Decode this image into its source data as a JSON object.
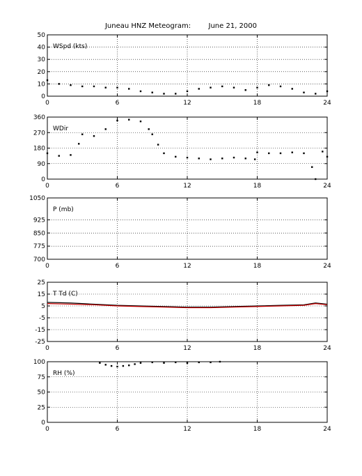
{
  "page": {
    "title": "Juneau HNZ Meteogram:        June 21, 2000"
  },
  "chart_data": [
    {
      "type": "scatter",
      "label": "WSpd (kts)",
      "ylim": [
        0,
        50
      ],
      "yticks": [
        0,
        10,
        20,
        30,
        40,
        50
      ],
      "xlim": [
        0,
        24
      ],
      "xticks": [
        0,
        6,
        12,
        18,
        24
      ],
      "grid": "dotted",
      "series": [
        {
          "color": "#000000",
          "x": [
            0,
            1,
            2,
            3,
            4,
            5,
            6,
            7,
            8,
            9,
            10,
            11,
            12,
            13,
            14,
            15,
            16,
            17,
            18,
            19,
            20,
            21,
            22,
            23,
            24
          ],
          "y": [
            13,
            10,
            9,
            8,
            8,
            7,
            7,
            6,
            4,
            3,
            2,
            2,
            4,
            6,
            7,
            8,
            7,
            5,
            7,
            9,
            8,
            6,
            3,
            2,
            4
          ]
        }
      ]
    },
    {
      "type": "scatter",
      "label": "WDir",
      "ylim": [
        0,
        360
      ],
      "yticks": [
        0,
        90,
        180,
        270,
        360
      ],
      "xlim": [
        0,
        24
      ],
      "xticks": [
        0,
        6,
        12,
        18,
        24
      ],
      "grid": "dotted",
      "series": [
        {
          "color": "#000000",
          "x": [
            0,
            1,
            2,
            2.7,
            3,
            4,
            5,
            6,
            7,
            8,
            8.7,
            9,
            9.5,
            10,
            11,
            12,
            13,
            14,
            15,
            16,
            17,
            17.8,
            18,
            19,
            20,
            21,
            22,
            22.7,
            23,
            23.6,
            24
          ],
          "y": [
            150,
            135,
            140,
            205,
            260,
            250,
            290,
            340,
            345,
            335,
            290,
            260,
            200,
            150,
            130,
            125,
            120,
            115,
            120,
            125,
            120,
            115,
            155,
            150,
            150,
            155,
            150,
            70,
            0,
            160,
            130
          ]
        }
      ]
    },
    {
      "type": "scatter",
      "label": "P (mb)",
      "ylim": [
        700,
        1050
      ],
      "yticks": [
        700,
        775,
        850,
        925,
        1050
      ],
      "xlim": [
        0,
        24
      ],
      "xticks": [
        0,
        6,
        12,
        18,
        24
      ],
      "grid": "dotted",
      "series": []
    },
    {
      "type": "line",
      "label": "T Td (C)",
      "ylim": [
        -25,
        25
      ],
      "yticks": [
        -25,
        -15,
        -5,
        5,
        15,
        25
      ],
      "xlim": [
        0,
        24
      ],
      "xticks": [
        0,
        6,
        12,
        18,
        24
      ],
      "grid": "dotted",
      "series": [
        {
          "name": "T",
          "color": "#000000",
          "x": [
            0,
            2,
            4,
            6,
            8,
            10,
            12,
            14,
            16,
            18,
            20,
            22,
            23,
            24
          ],
          "y": [
            8,
            7.5,
            6.5,
            5.5,
            5,
            4.5,
            4,
            4,
            4.5,
            5,
            5.5,
            6,
            7.5,
            6.5
          ]
        },
        {
          "name": "Td",
          "color": "#cc0000",
          "x": [
            0,
            2,
            4,
            6,
            8,
            10,
            12,
            14,
            16,
            18,
            20,
            22,
            23,
            24
          ],
          "y": [
            7,
            6.5,
            6,
            5,
            4.5,
            4,
            3.5,
            3.5,
            4,
            4.5,
            5,
            5.5,
            7,
            6
          ]
        }
      ]
    },
    {
      "type": "scatter",
      "label": "RH (%)",
      "ylim": [
        0,
        100
      ],
      "yticks": [
        0,
        25,
        50,
        75,
        100
      ],
      "xlim": [
        0,
        24
      ],
      "xticks": [
        0,
        6,
        12,
        18,
        24
      ],
      "grid": "dotted",
      "series": [
        {
          "color": "#000000",
          "x": [
            4.5,
            5,
            5.5,
            6,
            6.5,
            7,
            7.5,
            8,
            9,
            10,
            11,
            12,
            13,
            14,
            14.8
          ],
          "y": [
            98,
            95,
            93,
            92,
            93,
            94,
            96,
            98,
            99,
            98,
            99,
            98,
            99,
            99,
            100
          ]
        }
      ]
    }
  ]
}
